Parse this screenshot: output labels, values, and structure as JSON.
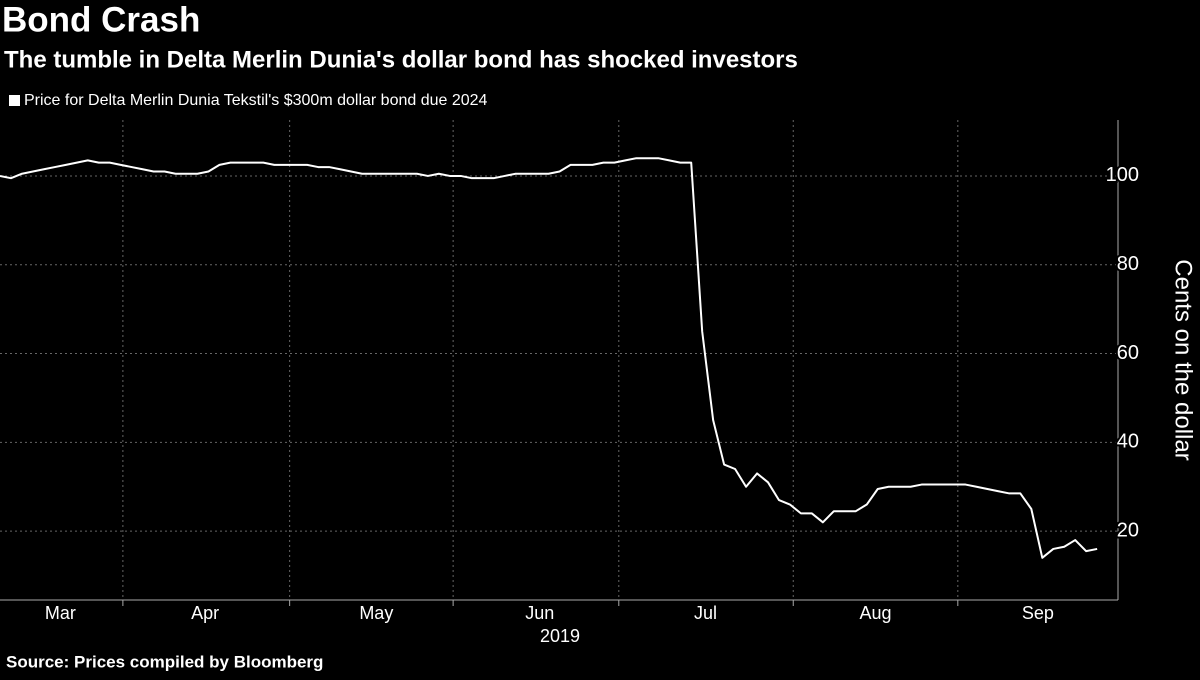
{
  "chart_data": {
    "type": "line",
    "title": "Bond Crash",
    "subtitle": "The tumble in Delta Merlin Dunia's dollar bond has shocked investors",
    "ylabel": "Cents on the dollar",
    "xlabel": "2019",
    "source": "Source: Prices compiled by Bloomberg",
    "xlim": [
      0,
      101.9
    ],
    "xgrid": [
      11.2,
      26.4,
      41.3,
      56.4,
      72.3,
      87.3
    ],
    "xticks": [
      {
        "value": 5.5,
        "label": "Mar"
      },
      {
        "value": 18.7,
        "label": "Apr"
      },
      {
        "value": 34.3,
        "label": "May"
      },
      {
        "value": 49.2,
        "label": "Jun"
      },
      {
        "value": 64.3,
        "label": "Jul"
      },
      {
        "value": 79.8,
        "label": "Aug"
      },
      {
        "value": 94.6,
        "label": "Sep"
      }
    ],
    "ylim": [
      4.5,
      112.6
    ],
    "yticks": [
      20,
      40,
      60,
      80,
      100
    ],
    "grid": true,
    "series": [
      {
        "name": "Price for Delta Merlin Dunia Tekstil's $300m dollar bond due 2024",
        "color": "#ffffff",
        "values": [
          100,
          99.5,
          100.5,
          101,
          101.5,
          102,
          102.5,
          103,
          103.5,
          103,
          103,
          102.5,
          102,
          101.5,
          101,
          101,
          100.5,
          100.5,
          100.5,
          101,
          102.5,
          103,
          103,
          103,
          103,
          102.5,
          102.5,
          102.5,
          102.5,
          102,
          102,
          101.5,
          101,
          100.5,
          100.5,
          100.5,
          100.5,
          100.5,
          100.5,
          100,
          100.5,
          100,
          100,
          99.5,
          99.5,
          99.5,
          100,
          100.5,
          100.5,
          100.5,
          100.5,
          101,
          102.5,
          102.5,
          102.5,
          103,
          103,
          103.5,
          104,
          104,
          104,
          103.5,
          103,
          103,
          65,
          45,
          35,
          34,
          30,
          33,
          31,
          27,
          26,
          24,
          24,
          22,
          24.5,
          24.5,
          24.5,
          26,
          29.5,
          30,
          30,
          30,
          30.5,
          30.5,
          30.5,
          30.5,
          30.5,
          30,
          29.5,
          29,
          28.5,
          28.5,
          25,
          14,
          16,
          16.5,
          18,
          15.5,
          16
        ]
      }
    ]
  }
}
